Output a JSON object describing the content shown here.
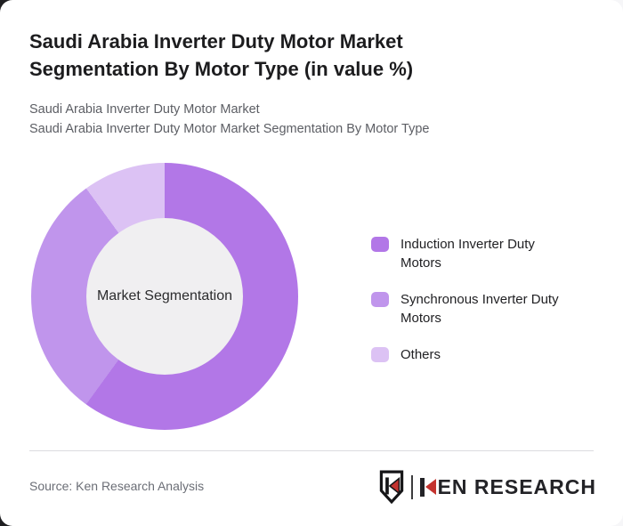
{
  "title": "Saudi Arabia Inverter Duty Motor Market Segmentation By Motor Type (in value %)",
  "subtitles": [
    "Saudi Arabia Inverter Duty Motor Market",
    "Saudi Arabia Inverter Duty Motor Market Segmentation By Motor Type"
  ],
  "chart_data": {
    "type": "pie",
    "subtype": "donut",
    "title": "Saudi Arabia Inverter Duty Motor Market Segmentation By Motor Type (in value %)",
    "center_label": "Market Segmentation",
    "categories": [
      "Induction Inverter Duty Motors",
      "Synchronous Inverter Duty Motors",
      "Others"
    ],
    "values": [
      60,
      30,
      10
    ],
    "unit": "value %",
    "colors": [
      "#b277e7",
      "#c095ec",
      "#dcc2f4"
    ],
    "hole_color": "#f0eff1",
    "start_angle_deg": 0,
    "direction": "clockwise",
    "legend_position": "right",
    "data_labels": false
  },
  "footer": {
    "source": "Source: Ken Research Analysis",
    "brand": "KEN RESEARCH",
    "brand_icon": "ken-shield-icon",
    "brand_red": "#c4332f",
    "brand_dark": "#232327"
  }
}
